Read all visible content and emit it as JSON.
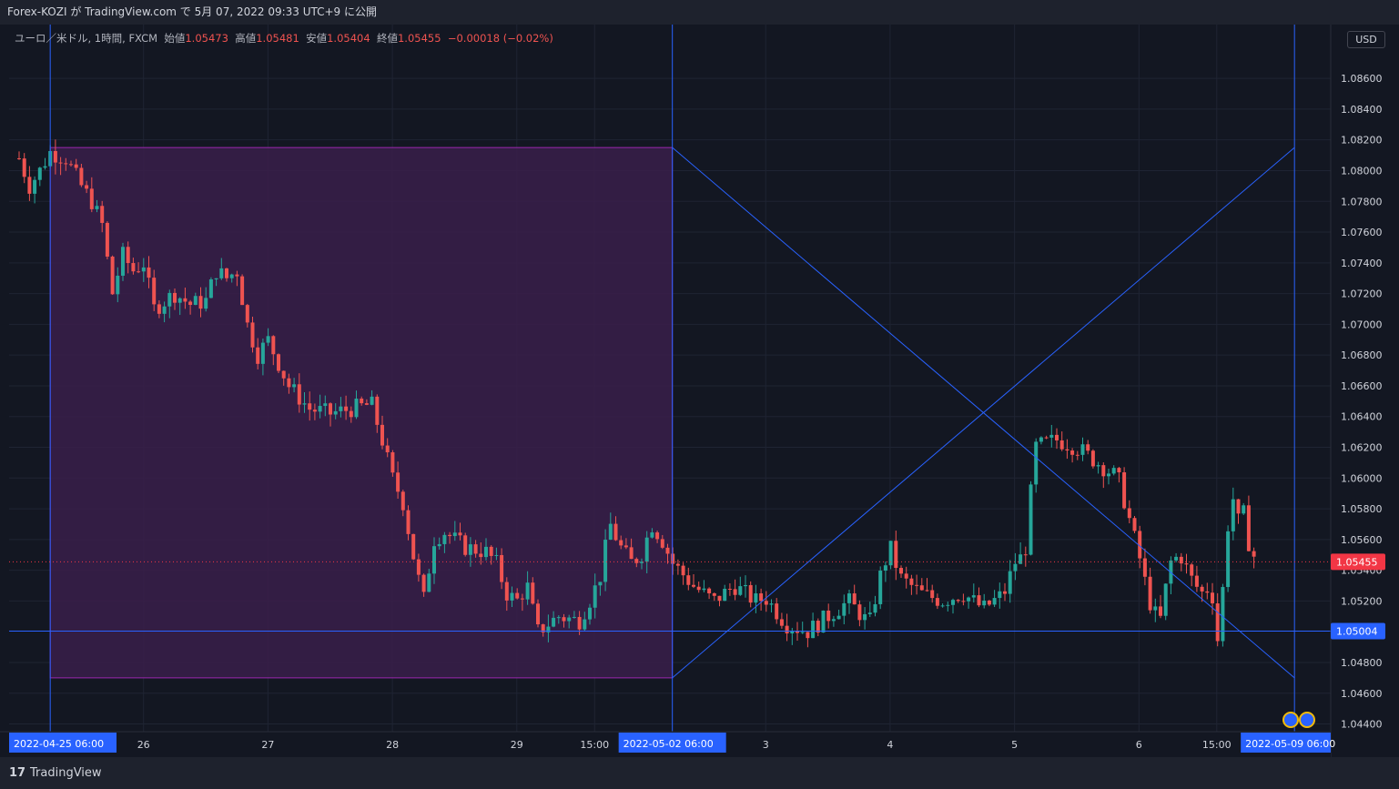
{
  "header": {
    "title": "Forex-KOZI が TradingView.com で 5月 07, 2022 09:33 UTC+9 に公開"
  },
  "legend": {
    "symbol": "ユーロ／米ドル, 1時間, FXCM",
    "open_label": "始値",
    "open": "1.05473",
    "high_label": "高値",
    "high": "1.05481",
    "low_label": "安値",
    "low": "1.05404",
    "close_label": "終値",
    "close": "1.05455",
    "change": "−0.00018 (−0.02%)"
  },
  "currency_button": "USD",
  "footer": {
    "logo_glyph": "17",
    "brand": "TradingView"
  },
  "colors": {
    "background": "#131722",
    "up": "#26a69a",
    "down": "#ef5350",
    "rectangle_fill": "#3a1f4a",
    "rectangle_border": "#9c27b0",
    "lines": "#2962ff",
    "price_tag": "#f23645"
  },
  "chart_data": {
    "type": "candlestick",
    "symbol": "EURUSD",
    "timeframe": "1時間",
    "ylim": [
      1.0435,
      1.0895
    ],
    "y_ticks": [
      "1.04400",
      "1.04600",
      "1.04800",
      "1.05200",
      "1.05400",
      "1.05600",
      "1.05800",
      "1.06000",
      "1.06200",
      "1.06400",
      "1.06600",
      "1.06800",
      "1.07000",
      "1.07200",
      "1.07400",
      "1.07600",
      "1.07800",
      "1.08000",
      "1.08200",
      "1.08400",
      "1.08600"
    ],
    "x_ticks": [
      {
        "label": "26",
        "t": "2022-04-26 00:00"
      },
      {
        "label": "27",
        "t": "2022-04-27 00:00"
      },
      {
        "label": "28",
        "t": "2022-04-28 00:00"
      },
      {
        "label": "29",
        "t": "2022-04-29 00:00"
      },
      {
        "label": "15:00",
        "t": "2022-04-29 15:00"
      },
      {
        "label": "3",
        "t": "2022-05-03 00:00"
      },
      {
        "label": "4",
        "t": "2022-05-04 00:00"
      },
      {
        "label": "5",
        "t": "2022-05-05 00:00"
      },
      {
        "label": "6",
        "t": "2022-05-06 00:00"
      },
      {
        "label": "15:00",
        "t": "2022-05-06 15:00"
      }
    ],
    "x_highlights": [
      {
        "label": "2022-04-25 06:00",
        "t": "2022-04-25 06:00"
      },
      {
        "label": "2022-05-02 06:00",
        "t": "2022-05-02 06:00"
      },
      {
        "label": "2022-05-09 06:00",
        "t": "2022-05-09 06:00"
      }
    ],
    "last_price": {
      "label": "1.05455",
      "value": 1.05455
    },
    "horizontal_line": {
      "label": "1.05004",
      "value": 1.05004
    },
    "rectangle": {
      "t_start": "2022-04-25 06:00",
      "t_end": "2022-05-02 06:00",
      "top": 1.0815,
      "bottom": 1.047
    },
    "cross_lines": [
      {
        "from": {
          "t": "2022-05-02 06:00",
          "v": 1.0815
        },
        "to": {
          "t": "2022-05-09 06:00",
          "v": 1.047
        }
      },
      {
        "from": {
          "t": "2022-05-02 06:00",
          "v": 1.047
        },
        "to": {
          "t": "2022-05-09 06:00",
          "v": 1.0815
        }
      }
    ],
    "ohlc_points": [
      [
        "2022-04-25 00:00",
        1.0808
      ],
      [
        "2022-04-25 02:00",
        1.079
      ],
      [
        "2022-04-25 04:00",
        1.08
      ],
      [
        "2022-04-25 06:00",
        1.0812
      ],
      [
        "2022-04-25 09:00",
        1.0808
      ],
      [
        "2022-04-25 12:00",
        1.079
      ],
      [
        "2022-04-25 14:00",
        1.078
      ],
      [
        "2022-04-25 16:00",
        1.0765
      ],
      [
        "2022-04-25 18:00",
        1.072
      ],
      [
        "2022-04-25 20:00",
        1.0745
      ],
      [
        "2022-04-25 22:00",
        1.0735
      ],
      [
        "2022-04-26 00:00",
        1.074
      ],
      [
        "2022-04-26 02:00",
        1.071
      ],
      [
        "2022-04-26 04:00",
        1.0715
      ],
      [
        "2022-04-26 06:00",
        1.072
      ],
      [
        "2022-04-26 09:00",
        1.0713
      ],
      [
        "2022-04-26 12:00",
        1.0715
      ],
      [
        "2022-04-26 14:00",
        1.0735
      ],
      [
        "2022-04-26 16:00",
        1.073
      ],
      [
        "2022-04-26 18:00",
        1.0735
      ],
      [
        "2022-04-26 20:00",
        1.07
      ],
      [
        "2022-04-26 22:00",
        1.068
      ],
      [
        "2022-04-27 00:00",
        1.069
      ],
      [
        "2022-04-27 02:00",
        1.0675
      ],
      [
        "2022-04-27 04:00",
        1.066
      ],
      [
        "2022-04-27 08:00",
        1.0645
      ],
      [
        "2022-04-27 12:00",
        1.0642
      ],
      [
        "2022-04-27 16:00",
        1.0645
      ],
      [
        "2022-04-27 20:00",
        1.0648
      ],
      [
        "2022-04-27 22:00",
        1.0625
      ],
      [
        "2022-04-28 00:00",
        1.06
      ],
      [
        "2022-04-28 02:00",
        1.0585
      ],
      [
        "2022-04-28 04:00",
        1.055
      ],
      [
        "2022-04-28 06:00",
        1.052
      ],
      [
        "2022-04-28 08:00",
        1.056
      ],
      [
        "2022-04-28 10:00",
        1.0565
      ],
      [
        "2022-04-28 14:00",
        1.0555
      ],
      [
        "2022-04-28 18:00",
        1.0552
      ],
      [
        "2022-04-28 20:00",
        1.0545
      ],
      [
        "2022-04-28 22:00",
        1.0525
      ],
      [
        "2022-04-29 00:00",
        1.052
      ],
      [
        "2022-04-29 02:00",
        1.053
      ],
      [
        "2022-04-29 04:00",
        1.05
      ],
      [
        "2022-04-29 06:00",
        1.0505
      ],
      [
        "2022-04-29 08:00",
        1.051
      ],
      [
        "2022-04-29 12:00",
        1.0507
      ],
      [
        "2022-04-29 14:00",
        1.052
      ],
      [
        "2022-04-29 16:00",
        1.0535
      ],
      [
        "2022-04-29 18:00",
        1.057
      ],
      [
        "2022-04-29 20:00",
        1.0555
      ],
      [
        "2022-04-29 22:00",
        1.0545
      ],
      [
        "2022-05-02 00:00",
        1.055
      ],
      [
        "2022-05-02 02:00",
        1.057
      ],
      [
        "2022-05-02 04:00",
        1.056
      ],
      [
        "2022-05-02 06:00",
        1.0545
      ],
      [
        "2022-05-02 10:00",
        1.053
      ],
      [
        "2022-05-02 14:00",
        1.052
      ],
      [
        "2022-05-02 18:00",
        1.053
      ],
      [
        "2022-05-02 22:00",
        1.052
      ],
      [
        "2022-05-03 00:00",
        1.0522
      ],
      [
        "2022-05-03 04:00",
        1.0505
      ],
      [
        "2022-05-03 08:00",
        1.05
      ],
      [
        "2022-05-03 12:00",
        1.051
      ],
      [
        "2022-05-03 16:00",
        1.052
      ],
      [
        "2022-05-03 20:00",
        1.0505
      ],
      [
        "2022-05-03 22:00",
        1.0535
      ],
      [
        "2022-05-04 00:00",
        1.0555
      ],
      [
        "2022-05-04 02:00",
        1.0535
      ],
      [
        "2022-05-04 06:00",
        1.0525
      ],
      [
        "2022-05-04 10:00",
        1.052
      ],
      [
        "2022-05-04 14:00",
        1.0525
      ],
      [
        "2022-05-04 18:00",
        1.0515
      ],
      [
        "2022-05-04 22:00",
        1.0525
      ],
      [
        "2022-05-05 00:00",
        1.0545
      ],
      [
        "2022-05-05 02:00",
        1.055
      ],
      [
        "2022-05-05 04:00",
        1.062
      ],
      [
        "2022-05-05 08:00",
        1.0625
      ],
      [
        "2022-05-05 12:00",
        1.062
      ],
      [
        "2022-05-05 16:00",
        1.061
      ],
      [
        "2022-05-05 20:00",
        1.06
      ],
      [
        "2022-05-05 22:00",
        1.0575
      ],
      [
        "2022-05-06 00:00",
        1.055
      ],
      [
        "2022-05-06 02:00",
        1.052
      ],
      [
        "2022-05-06 04:00",
        1.0505
      ],
      [
        "2022-05-06 06:00",
        1.0545
      ],
      [
        "2022-05-06 08:00",
        1.055
      ],
      [
        "2022-05-06 10:00",
        1.0535
      ],
      [
        "2022-05-06 12:00",
        1.0525
      ],
      [
        "2022-05-06 14:00",
        1.053
      ],
      [
        "2022-05-06 15:00",
        1.049
      ],
      [
        "2022-05-06 16:00",
        1.052
      ],
      [
        "2022-05-06 17:00",
        1.0565
      ],
      [
        "2022-05-06 18:00",
        1.059
      ],
      [
        "2022-05-06 19:00",
        1.057
      ],
      [
        "2022-05-06 20:00",
        1.058
      ],
      [
        "2022-05-06 21:00",
        1.056
      ],
      [
        "2022-05-06 22:00",
        1.055
      ],
      [
        "2022-05-06 23:00",
        1.05455
      ]
    ]
  }
}
